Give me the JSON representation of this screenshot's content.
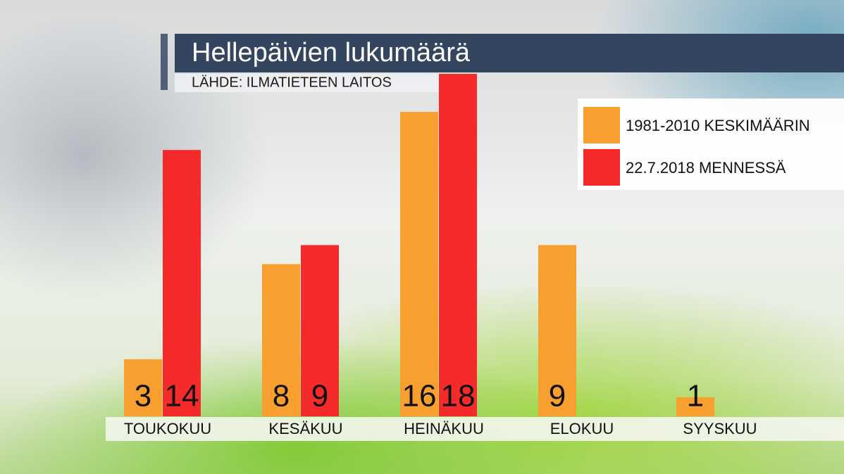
{
  "chart_data": {
    "type": "bar",
    "title": "Hellepäivien lukumäärä",
    "subtitle": "LÄHDE: ILMATIETEEN LAITOS",
    "categories": [
      "TOUKOKUU",
      "KESÄKUU",
      "HEINÄKUU",
      "ELOKUU",
      "SYYSKUU"
    ],
    "series": [
      {
        "name": "1981-2010 KESKIMÄÄRIN",
        "color": "#f7a030",
        "values": [
          3,
          8,
          16,
          9,
          1
        ]
      },
      {
        "name": "22.7.2018 MENNESSÄ",
        "color": "#f52a2a",
        "values": [
          14,
          9,
          18,
          null,
          null
        ]
      }
    ],
    "ylim": [
      0,
      18
    ]
  }
}
